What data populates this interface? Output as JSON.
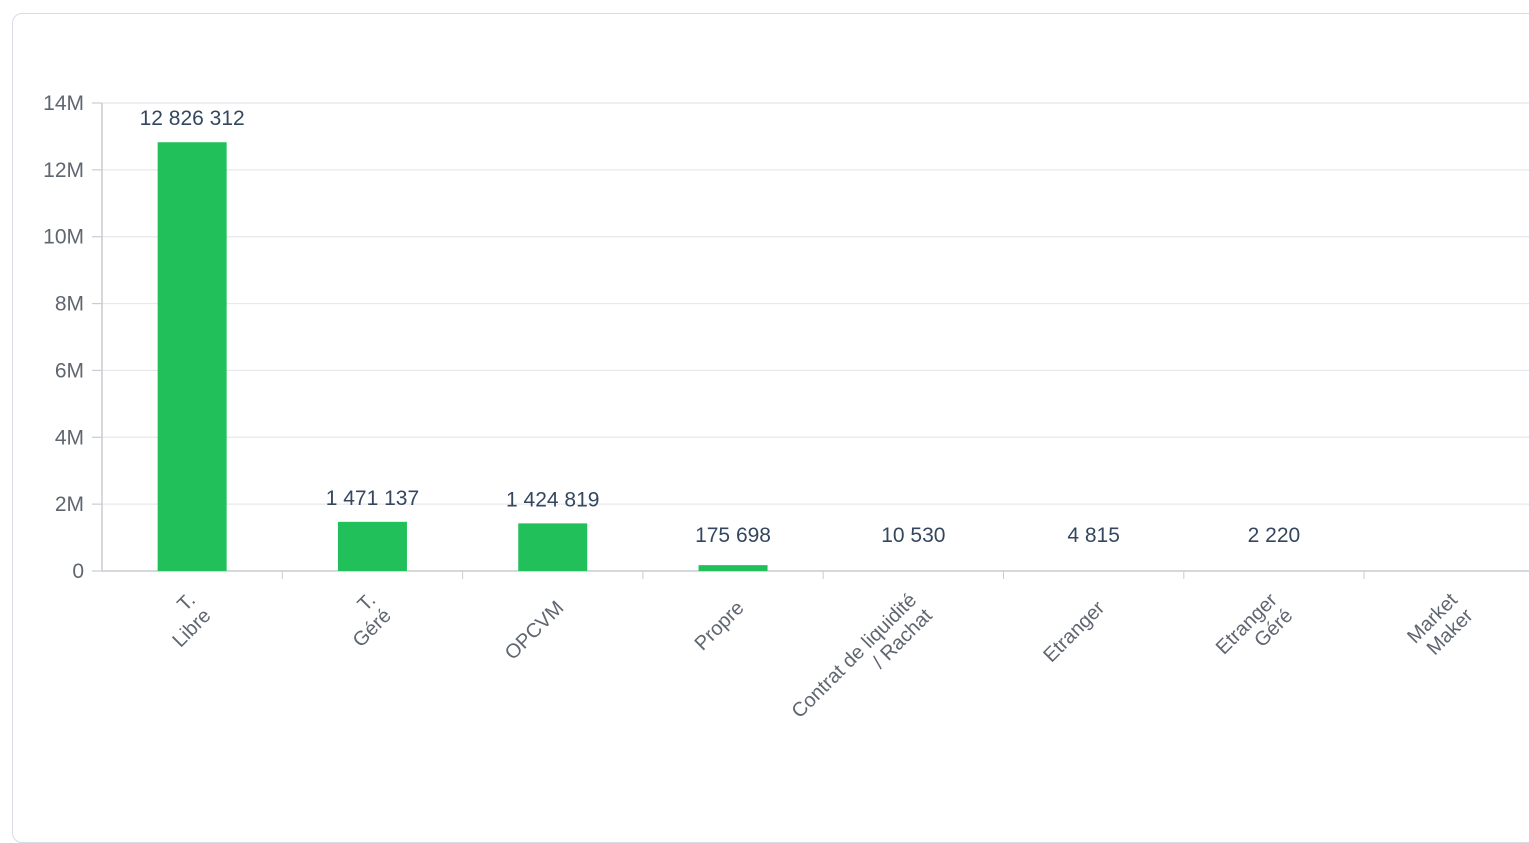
{
  "chart_data": {
    "type": "bar",
    "categories": [
      [
        "T.",
        "Libre"
      ],
      [
        "T.",
        "Géré"
      ],
      [
        "OPCVM"
      ],
      [
        "Propre"
      ],
      [
        "Contrat de liquidité",
        "/ Rachat"
      ],
      [
        "Etranger"
      ],
      [
        "Etranger",
        "Géré"
      ],
      [
        "Market",
        "Maker"
      ]
    ],
    "values": [
      12826312,
      1471137,
      1424819,
      175698,
      10530,
      4815,
      2220,
      null
    ],
    "data_labels": [
      "12 826 312",
      "1 471 137",
      "1 424 819",
      "175 698",
      "10 530",
      "4 815",
      "2 220",
      ""
    ],
    "y_ticks": [
      0,
      2000000,
      4000000,
      6000000,
      8000000,
      10000000,
      12000000,
      14000000
    ],
    "y_tick_labels": [
      "0",
      "2M",
      "4M",
      "6M",
      "8M",
      "10M",
      "12M",
      "14M"
    ],
    "ylim": [
      0,
      14000000
    ],
    "title": "",
    "xlabel": "",
    "ylabel": "",
    "grid": true,
    "bar_color": "#22c05a",
    "grid_color": "#e6e8eb",
    "axis_color": "#c9ccd1"
  }
}
